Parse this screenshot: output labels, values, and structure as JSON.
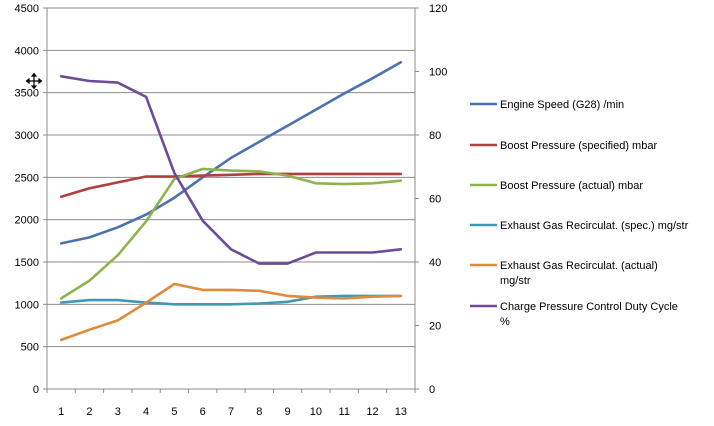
{
  "chart_data": {
    "type": "line",
    "categories": [
      "1",
      "2",
      "3",
      "4",
      "5",
      "6",
      "7",
      "8",
      "9",
      "10",
      "11",
      "12",
      "13"
    ],
    "y_left_ticks": [
      "0",
      "500",
      "1000",
      "1500",
      "2000",
      "2500",
      "3000",
      "3500",
      "4000",
      "4500"
    ],
    "y_right_ticks": [
      "0",
      "20",
      "40",
      "60",
      "80",
      "100",
      "120"
    ],
    "ylim_left": [
      0,
      4500
    ],
    "ylim_right": [
      0,
      120
    ],
    "grid": "horizontal",
    "legend_position": "right",
    "series": [
      {
        "name": "Engine Speed (G28)  /min",
        "legend_lines": [
          "Engine Speed (G28)  /min"
        ],
        "color": "#4a72b0",
        "axis": "left",
        "values": [
          1720,
          1790,
          1910,
          2060,
          2260,
          2500,
          2730,
          2920,
          3110,
          3300,
          3490,
          3670,
          3860
        ]
      },
      {
        "name": "Boost Pressure (specified)  mbar",
        "legend_lines": [
          "Boost Pressure (specified)  mbar"
        ],
        "color": "#b0413e",
        "axis": "left",
        "values": [
          2270,
          2370,
          2440,
          2510,
          2510,
          2520,
          2530,
          2540,
          2540,
          2540,
          2540,
          2540,
          2540
        ]
      },
      {
        "name": "Boost Pressure (actual)  mbar",
        "legend_lines": [
          "Boost Pressure (actual)  mbar"
        ],
        "color": "#8fb34f",
        "axis": "left",
        "values": [
          1070,
          1280,
          1580,
          1980,
          2480,
          2600,
          2580,
          2570,
          2520,
          2430,
          2420,
          2430,
          2460
        ]
      },
      {
        "name": "Exhaust Gas Recirculat. (spec.)  mg/str",
        "legend_lines": [
          "Exhaust Gas Recirculat. (spec.)  mg/str"
        ],
        "color": "#3e9ab3",
        "axis": "left",
        "values": [
          1020,
          1050,
          1050,
          1020,
          1000,
          1000,
          1000,
          1010,
          1030,
          1090,
          1100,
          1100,
          1100
        ]
      },
      {
        "name": "Exhaust Gas Recirculat. (actual) mg/str",
        "legend_lines": [
          "Exhaust Gas Recirculat. (actual)",
          "mg/str"
        ],
        "color": "#e08a3c",
        "axis": "left",
        "values": [
          580,
          700,
          810,
          1020,
          1240,
          1170,
          1170,
          1160,
          1100,
          1080,
          1070,
          1090,
          1100
        ]
      },
      {
        "name": "Charge Pressure Control Duty Cycle %",
        "legend_lines": [
          "Charge Pressure Control Duty Cycle",
          "%"
        ],
        "color": "#6e4b98",
        "axis": "right",
        "values": [
          98.5,
          97,
          96.5,
          92,
          68,
          53,
          44,
          39.5,
          39.5,
          43,
          43,
          43,
          44
        ]
      }
    ]
  }
}
